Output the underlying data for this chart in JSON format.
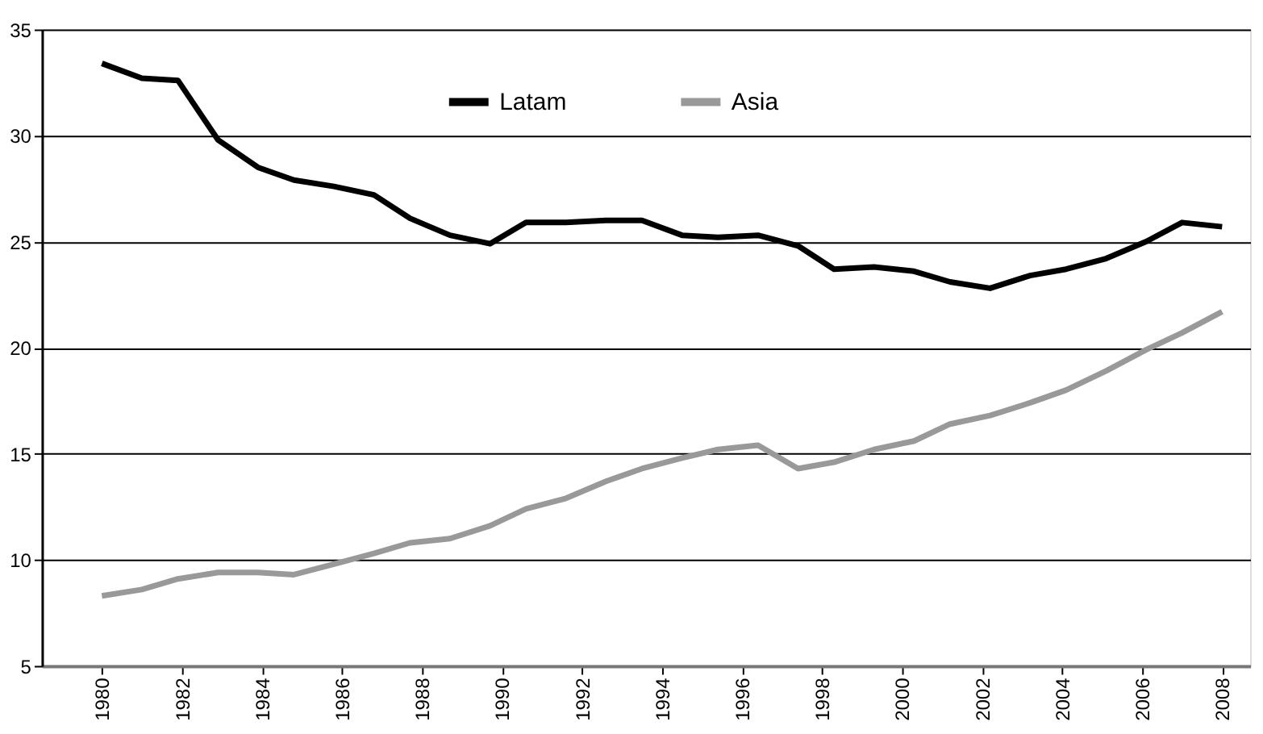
{
  "chart_data": {
    "type": "line",
    "x": [
      1980,
      1981,
      1981.9,
      1982.9,
      1983.9,
      1984.8,
      1985.8,
      1986.8,
      1987.7,
      1988.7,
      1989.7,
      1990.6,
      1991.6,
      1992.6,
      1993.5,
      1994.5,
      1995.4,
      1996.4,
      1997.4,
      1998.3,
      1999.3,
      2000.3,
      2001.2,
      2002.2,
      2003.2,
      2004.1,
      2005.1,
      2006.1,
      2007,
      2008
    ],
    "series": [
      {
        "name": "Latam",
        "color": "#000000",
        "values": [
          33.4,
          32.7,
          32.6,
          29.8,
          28.5,
          27.9,
          27.6,
          27.2,
          26.1,
          25.3,
          24.9,
          25.9,
          25.9,
          26.0,
          26.0,
          25.3,
          25.2,
          25.3,
          24.8,
          23.7,
          23.8,
          23.6,
          23.1,
          22.8,
          23.4,
          23.7,
          24.2,
          25.0,
          25.9,
          25.7
        ]
      },
      {
        "name": "Asia",
        "color": "#999999",
        "values": [
          8.3,
          8.6,
          9.1,
          9.4,
          9.4,
          9.3,
          9.8,
          10.3,
          10.8,
          11.0,
          11.6,
          12.4,
          12.9,
          13.7,
          14.3,
          14.8,
          15.2,
          15.4,
          14.3,
          14.6,
          15.2,
          15.6,
          16.4,
          16.8,
          17.4,
          18.0,
          18.9,
          19.9,
          20.7,
          21.7
        ]
      }
    ],
    "xlim": [
      1978.5,
      2008.7
    ],
    "xticks": [
      1980,
      1982,
      1984,
      1986,
      1988,
      1990,
      1992,
      1994,
      1996,
      1998,
      2000,
      2002,
      2004,
      2006,
      2008
    ],
    "ylim": [
      5,
      35
    ],
    "yticks": [
      5,
      10,
      15,
      20,
      25,
      30,
      35
    ],
    "grid": "y",
    "legend": "top",
    "line_style": "solid",
    "marker": "none"
  }
}
